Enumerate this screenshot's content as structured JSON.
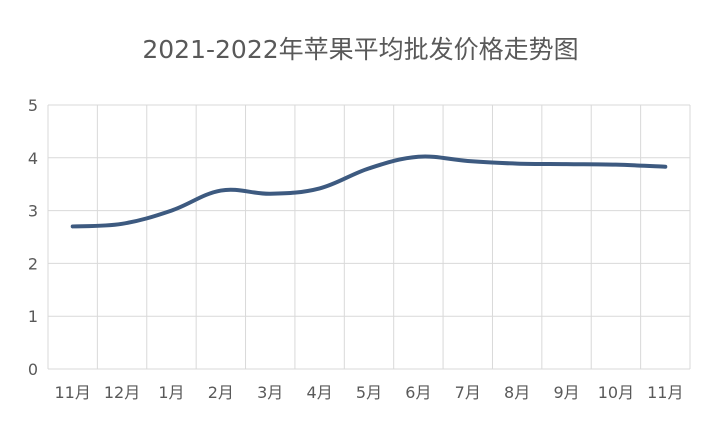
{
  "chart_data": {
    "type": "line",
    "title": "2021-2022年苹果平均批发价格走势图",
    "xlabel": "",
    "ylabel": "",
    "categories": [
      "11月",
      "12月",
      "1月",
      "2月",
      "3月",
      "4月",
      "5月",
      "6月",
      "7月",
      "8月",
      "9月",
      "10月",
      "11月"
    ],
    "series": [
      {
        "values": [
          2.7,
          2.75,
          3.0,
          3.38,
          3.32,
          3.42,
          3.8,
          4.02,
          3.94,
          3.89,
          3.88,
          3.87,
          3.83
        ]
      }
    ],
    "ylim": [
      0,
      5
    ],
    "yticks": [
      "0",
      "1",
      "2",
      "3",
      "4",
      "5"
    ],
    "grid": true,
    "line_color": "#3d5a80"
  }
}
